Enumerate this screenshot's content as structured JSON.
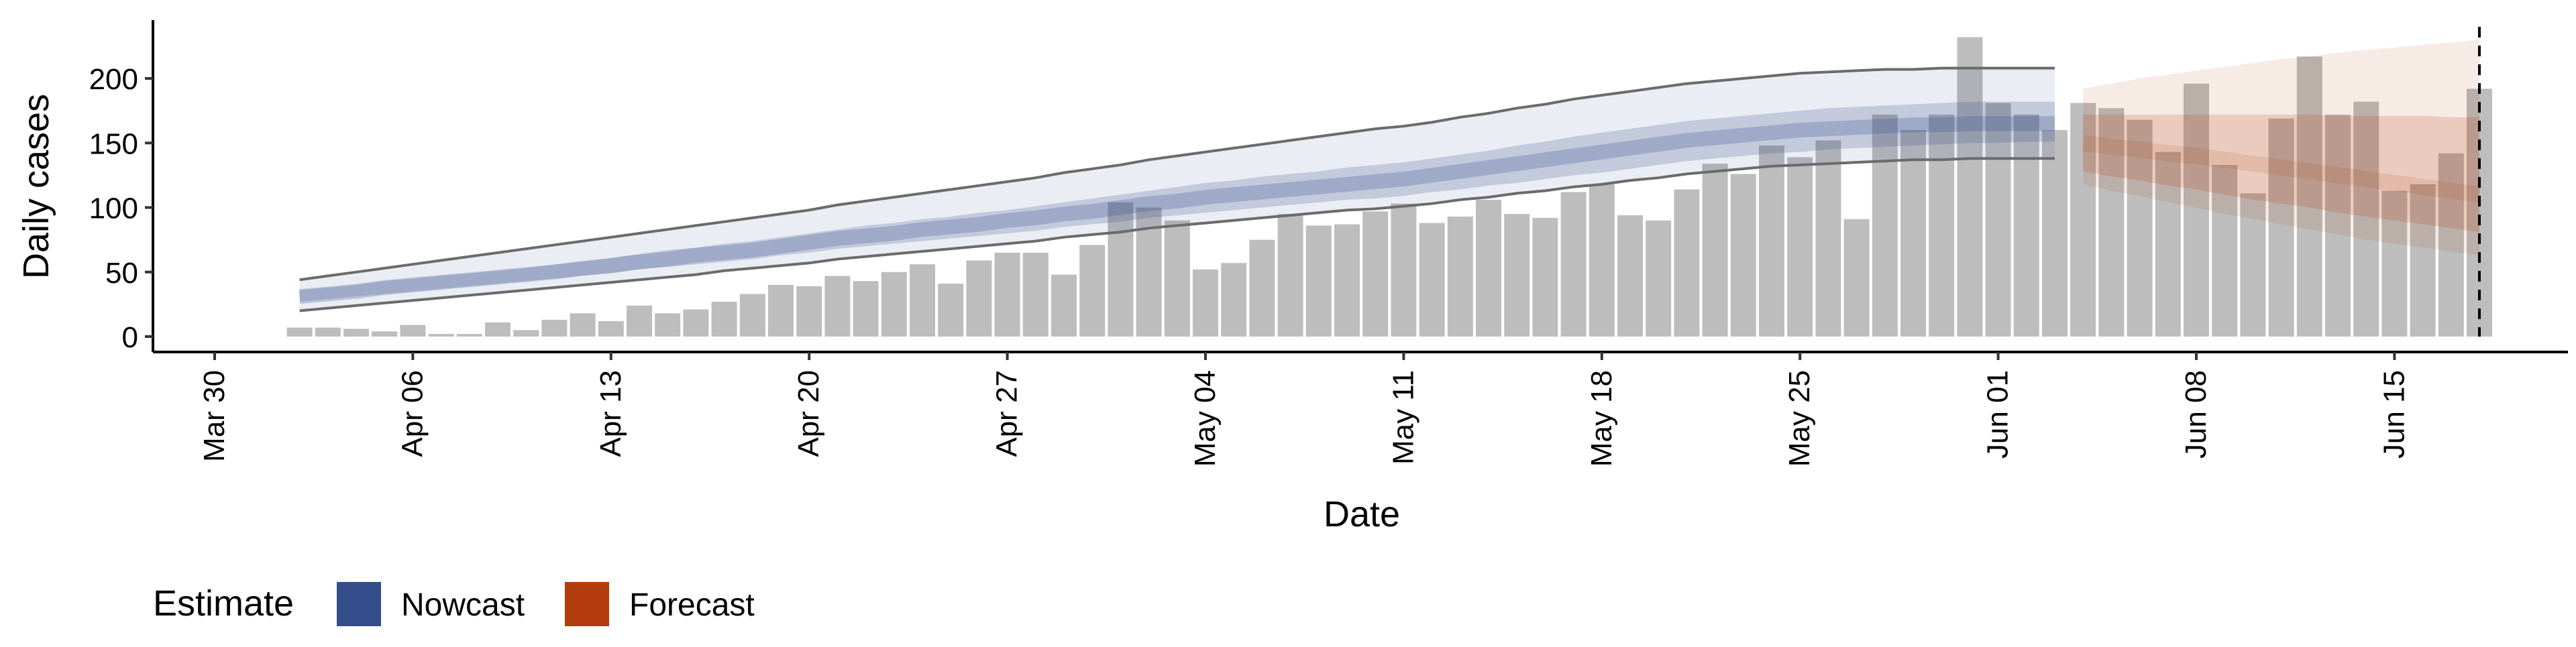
{
  "chart_data": {
    "type": "bar",
    "xlabel": "Date",
    "ylabel": "Daily cases",
    "ylim": [
      0,
      240
    ],
    "y_ticks": [
      0,
      50,
      100,
      150,
      200
    ],
    "x_ticks": [
      {
        "date": "2020-03-30",
        "label": "Mar 30"
      },
      {
        "date": "2020-04-06",
        "label": "Apr 06"
      },
      {
        "date": "2020-04-13",
        "label": "Apr 13"
      },
      {
        "date": "2020-04-20",
        "label": "Apr 20"
      },
      {
        "date": "2020-04-27",
        "label": "Apr 27"
      },
      {
        "date": "2020-05-04",
        "label": "May 04"
      },
      {
        "date": "2020-05-11",
        "label": "May 11"
      },
      {
        "date": "2020-05-18",
        "label": "May 18"
      },
      {
        "date": "2020-05-25",
        "label": "May 25"
      },
      {
        "date": "2020-06-01",
        "label": "Jun 01"
      },
      {
        "date": "2020-06-08",
        "label": "Jun 08"
      },
      {
        "date": "2020-06-15",
        "label": "Jun 15"
      }
    ],
    "x_start": "2020-04-02",
    "reported_cases": [
      7,
      7,
      6,
      4,
      9,
      2,
      2,
      11,
      5,
      13,
      18,
      12,
      24,
      18,
      21,
      27,
      33,
      40,
      39,
      47,
      43,
      50,
      56,
      41,
      59,
      65,
      65,
      48,
      71,
      104,
      100,
      90,
      52,
      57,
      75,
      95,
      86,
      87,
      97,
      103,
      88,
      93,
      106,
      95,
      92,
      112,
      118,
      94,
      90,
      114,
      134,
      126,
      148,
      139,
      152,
      91,
      172,
      160,
      172,
      232,
      181,
      172,
      160,
      181,
      177,
      168,
      143,
      196,
      133,
      111,
      169,
      217,
      172,
      182,
      113,
      118,
      142,
      192
    ],
    "nowcast": {
      "start": "2020-04-02",
      "end": "2020-06-03",
      "median": [
        31,
        33,
        35,
        38,
        40,
        42,
        44,
        46,
        48,
        50,
        53,
        55,
        58,
        60,
        63,
        65,
        67,
        70,
        73,
        76,
        78,
        80,
        83,
        85,
        87,
        90,
        92,
        95,
        97,
        100,
        103,
        105,
        108,
        110,
        112,
        114,
        116,
        118,
        120,
        122,
        125,
        128,
        131,
        134,
        137,
        140,
        143,
        146,
        149,
        152,
        154,
        156,
        158,
        160,
        161,
        162,
        163,
        164,
        164,
        165,
        165,
        165,
        165
      ],
      "inner": [
        [
          27,
          36
        ],
        [
          29,
          38
        ],
        [
          31,
          40
        ],
        [
          33,
          43
        ],
        [
          35,
          45
        ],
        [
          37,
          47
        ],
        [
          39,
          49
        ],
        [
          41,
          51
        ],
        [
          43,
          53
        ],
        [
          45,
          56
        ],
        [
          47,
          58
        ],
        [
          49,
          61
        ],
        [
          52,
          64
        ],
        [
          54,
          67
        ],
        [
          56,
          69
        ],
        [
          58,
          72
        ],
        [
          60,
          74
        ],
        [
          63,
          77
        ],
        [
          65,
          80
        ],
        [
          68,
          83
        ],
        [
          70,
          86
        ],
        [
          72,
          88
        ],
        [
          74,
          91
        ],
        [
          76,
          93
        ],
        [
          78,
          96
        ],
        [
          80,
          98
        ],
        [
          82,
          101
        ],
        [
          85,
          104
        ],
        [
          87,
          107
        ],
        [
          89,
          110
        ],
        [
          92,
          113
        ],
        [
          94,
          116
        ],
        [
          96,
          119
        ],
        [
          98,
          121
        ],
        [
          100,
          124
        ],
        [
          102,
          126
        ],
        [
          104,
          128
        ],
        [
          106,
          131
        ],
        [
          107,
          133
        ],
        [
          109,
          135
        ],
        [
          112,
          138
        ],
        [
          114,
          141
        ],
        [
          117,
          144
        ],
        [
          119,
          148
        ],
        [
          122,
          151
        ],
        [
          125,
          155
        ],
        [
          127,
          158
        ],
        [
          130,
          161
        ],
        [
          133,
          164
        ],
        [
          136,
          167
        ],
        [
          138,
          169
        ],
        [
          140,
          171
        ],
        [
          142,
          173
        ],
        [
          143,
          175
        ],
        [
          145,
          177
        ],
        [
          146,
          178
        ],
        [
          147,
          179
        ],
        [
          148,
          180
        ],
        [
          149,
          181
        ],
        [
          150,
          182
        ],
        [
          150,
          182
        ],
        [
          151,
          182
        ],
        [
          151,
          182
        ]
      ],
      "outer": [
        [
          20,
          44
        ],
        [
          22,
          47
        ],
        [
          24,
          50
        ],
        [
          26,
          53
        ],
        [
          28,
          56
        ],
        [
          30,
          59
        ],
        [
          32,
          62
        ],
        [
          34,
          65
        ],
        [
          36,
          68
        ],
        [
          38,
          71
        ],
        [
          40,
          74
        ],
        [
          42,
          77
        ],
        [
          44,
          80
        ],
        [
          46,
          83
        ],
        [
          48,
          86
        ],
        [
          51,
          89
        ],
        [
          53,
          92
        ],
        [
          55,
          95
        ],
        [
          57,
          98
        ],
        [
          60,
          102
        ],
        [
          62,
          105
        ],
        [
          64,
          108
        ],
        [
          66,
          111
        ],
        [
          68,
          114
        ],
        [
          70,
          117
        ],
        [
          72,
          120
        ],
        [
          74,
          123
        ],
        [
          77,
          127
        ],
        [
          79,
          130
        ],
        [
          81,
          133
        ],
        [
          84,
          137
        ],
        [
          86,
          140
        ],
        [
          88,
          143
        ],
        [
          90,
          146
        ],
        [
          92,
          149
        ],
        [
          94,
          152
        ],
        [
          96,
          155
        ],
        [
          98,
          158
        ],
        [
          99,
          161
        ],
        [
          101,
          163
        ],
        [
          103,
          166
        ],
        [
          106,
          170
        ],
        [
          108,
          173
        ],
        [
          111,
          177
        ],
        [
          113,
          180
        ],
        [
          116,
          184
        ],
        [
          118,
          187
        ],
        [
          121,
          190
        ],
        [
          123,
          193
        ],
        [
          126,
          196
        ],
        [
          128,
          198
        ],
        [
          130,
          200
        ],
        [
          132,
          202
        ],
        [
          133,
          204
        ],
        [
          134,
          205
        ],
        [
          135,
          206
        ],
        [
          136,
          207
        ],
        [
          137,
          207
        ],
        [
          137,
          208
        ],
        [
          138,
          208
        ],
        [
          138,
          208
        ],
        [
          138,
          208
        ],
        [
          138,
          208
        ]
      ]
    },
    "forecast": {
      "start": "2020-06-04",
      "end": "2020-06-18",
      "median": [
        150,
        147,
        145,
        142,
        140,
        137,
        134,
        131,
        128,
        125,
        122,
        119,
        116,
        113,
        110
      ],
      "inner": [
        [
          128,
          172
        ],
        [
          124,
          172
        ],
        [
          121,
          172
        ],
        [
          117,
          172
        ],
        [
          114,
          172
        ],
        [
          110,
          172
        ],
        [
          106,
          172
        ],
        [
          103,
          172
        ],
        [
          100,
          172
        ],
        [
          96,
          171
        ],
        [
          93,
          171
        ],
        [
          90,
          171
        ],
        [
          87,
          171
        ],
        [
          84,
          170
        ],
        [
          81,
          170
        ]
      ],
      "outer": [
        [
          118,
          192
        ],
        [
          113,
          196
        ],
        [
          109,
          200
        ],
        [
          104,
          203
        ],
        [
          100,
          206
        ],
        [
          95,
          209
        ],
        [
          91,
          212
        ],
        [
          87,
          215
        ],
        [
          83,
          217
        ],
        [
          79,
          220
        ],
        [
          75,
          222
        ],
        [
          72,
          224
        ],
        [
          69,
          226
        ],
        [
          66,
          228
        ],
        [
          63,
          230
        ]
      ]
    },
    "vline": "2020-06-18",
    "legend": {
      "position": "bottom-left",
      "title": "Estimate",
      "items": [
        {
          "label": "Nowcast",
          "color": "#354d8b"
        },
        {
          "label": "Forecast",
          "color": "#b33c0d"
        }
      ]
    },
    "colors": {
      "bar": "#bdbdbd",
      "nowcast": "#354d8b",
      "forecast": "#b33c0d",
      "interval_line": "#6b6b6b"
    }
  }
}
